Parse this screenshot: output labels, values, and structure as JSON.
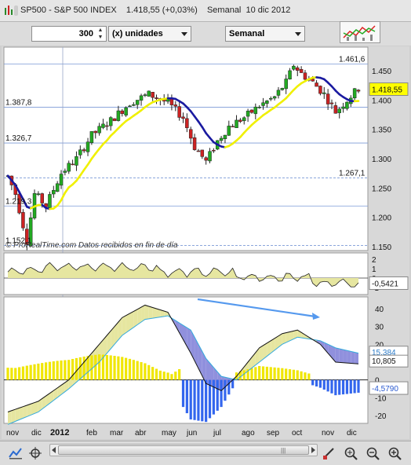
{
  "window": {
    "title": "SP500 - S&P 500 INDEX    1.418,55 (+0,03%)    Semanal  10 dic 2012"
  },
  "controls": {
    "quantity_value": "300",
    "units_label": "(x) unidades",
    "period_label": "Semanal"
  },
  "price_panel": {
    "last_price_label": "1.418,55",
    "attribution": "© ProRealTime.com  Datos recibidos en fin de día",
    "level_labels": [
      "1.461,6",
      "1.387,8",
      "1.326,7",
      "1.267,1",
      "1.219,3",
      "1.152,1"
    ],
    "axis_ticks": [
      "1.450",
      "1.400",
      "1.350",
      "1.300",
      "1.250",
      "1.200",
      "1.150"
    ]
  },
  "osc1_panel": {
    "axis_ticks": [
      "2",
      "1",
      "0",
      "-1"
    ],
    "last_value_label": "-0,5421"
  },
  "macd_panel": {
    "axis_ticks": [
      "40",
      "30",
      "20",
      "10",
      "0",
      "-10",
      "-20"
    ],
    "label_signal": "15,384",
    "label_macd": "10,805",
    "label_hist": "-4,5790"
  },
  "time_axis": {
    "labels": [
      "nov",
      "dic",
      "2012",
      "feb",
      "mar",
      "abr",
      "may",
      "jun",
      "jul",
      "ago",
      "sep",
      "oct",
      "nov",
      "dic"
    ]
  },
  "colors": {
    "up": "#22aa22",
    "down": "#cc2222",
    "ma": "#f0f000",
    "ma_down": "#1a1aa0",
    "fill_yellow": "#e6e6a0",
    "fill_blue": "#9090dd",
    "hist_pos": "#f0e600",
    "hist_neg": "#3366ee",
    "price_badge": "#ffff00",
    "arrow": "#5599ee"
  }
}
